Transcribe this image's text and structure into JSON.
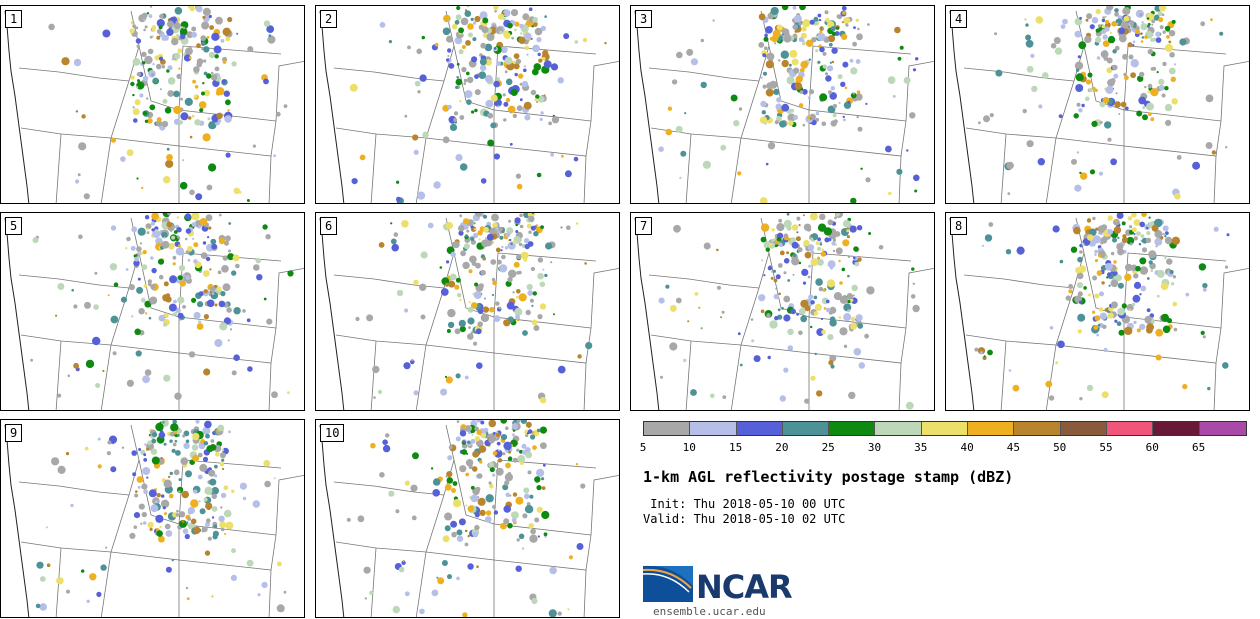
{
  "panels": [
    {
      "label": "1"
    },
    {
      "label": "2"
    },
    {
      "label": "3"
    },
    {
      "label": "4"
    },
    {
      "label": "5"
    },
    {
      "label": "6"
    },
    {
      "label": "7"
    },
    {
      "label": "8"
    },
    {
      "label": "9"
    },
    {
      "label": "10"
    }
  ],
  "colorbar": {
    "colors": [
      "#a8a8a8",
      "#b5bfe8",
      "#5660d8",
      "#4c9296",
      "#0e8a10",
      "#bcd8b8",
      "#ede06a",
      "#eeb020",
      "#b8842e",
      "#8a5a3c",
      "#f0557a",
      "#6a1838",
      "#aa4aa8"
    ],
    "ticks": [
      "5",
      "10",
      "15",
      "20",
      "25",
      "30",
      "35",
      "40",
      "45",
      "50",
      "55",
      "60",
      "65"
    ]
  },
  "title": "1-km AGL reflectivity postage stamp (dBZ)",
  "init": " Init: Thu 2018-05-10 00 UTC",
  "valid": "Valid: Thu 2018-05-10 02 UTC",
  "logo": {
    "text": "NCAR",
    "icon": "ncar-logo-icon"
  },
  "website": "ensemble.ucar.edu"
}
